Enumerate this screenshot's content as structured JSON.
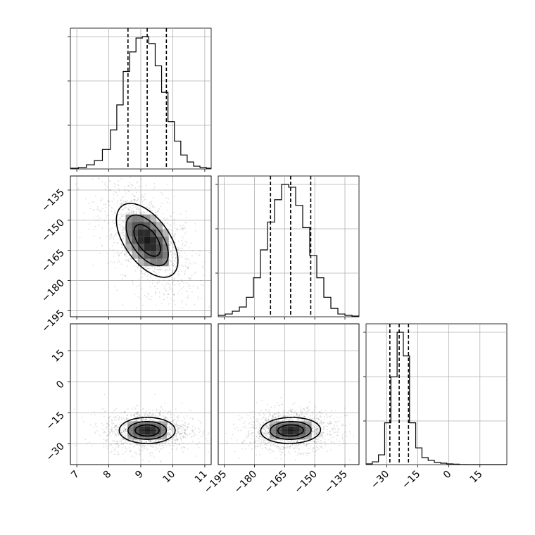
{
  "chart_data": {
    "type": "corner",
    "parameters": [
      {
        "range": [
          6.8,
          11.2
        ],
        "ticks": [
          7,
          8,
          9,
          10,
          11
        ],
        "tick_labels": [
          "7",
          "8",
          "9",
          "10",
          "11"
        ],
        "quantiles": [
          8.6,
          9.2,
          9.8
        ]
      },
      {
        "range": [
          -198,
          -128
        ],
        "ticks": [
          -195,
          -180,
          -165,
          -150,
          -135
        ],
        "tick_labels": [
          "−195",
          "−180",
          "−165",
          "−150",
          "−135"
        ],
        "quantiles": [
          -172,
          -162,
          -152
        ]
      },
      {
        "range": [
          -40,
          28
        ],
        "ticks": [
          -30,
          -15,
          0,
          15
        ],
        "tick_labels": [
          "−30",
          "−15",
          "0",
          "15"
        ],
        "quantiles": [
          -28.5,
          -24,
          -19.5
        ]
      }
    ],
    "histograms": [
      {
        "param": 0,
        "bin_edges": [
          6.8,
          7.05,
          7.3,
          7.55,
          7.8,
          8.05,
          8.25,
          8.45,
          8.65,
          8.85,
          9.05,
          9.25,
          9.45,
          9.65,
          9.85,
          10.05,
          10.25,
          10.45,
          10.65,
          10.85,
          11.05,
          11.2
        ],
        "counts": [
          0.5,
          1,
          3,
          6,
          14,
          28,
          46,
          70,
          84,
          94,
          95,
          90,
          74,
          55,
          34,
          20,
          10,
          5,
          2,
          1,
          0.5
        ]
      },
      {
        "param": 1,
        "bin_edges": [
          -198,
          -194.5,
          -191,
          -187.5,
          -184,
          -180.5,
          -177,
          -173.5,
          -170,
          -166.5,
          -163,
          -159.5,
          -156,
          -152.5,
          -149,
          -145.5,
          -142,
          -138.5,
          -135,
          -131.5,
          -128
        ],
        "counts": [
          1,
          2,
          4,
          7,
          14,
          28,
          48,
          68,
          84,
          95,
          93,
          80,
          64,
          44,
          28,
          14,
          6,
          2,
          1,
          0.5
        ]
      },
      {
        "param": 2,
        "bin_edges": [
          -40,
          -37,
          -34,
          -31,
          -28,
          -25,
          -22,
          -19,
          -16,
          -13,
          -10,
          -7,
          -4,
          -1,
          2,
          5,
          8,
          11,
          14,
          17,
          20,
          23,
          28
        ],
        "counts": [
          0.5,
          2,
          7,
          30,
          63,
          95,
          78,
          30,
          12,
          5,
          3,
          1.5,
          1,
          0.5,
          0.3,
          0.1,
          0,
          0,
          0,
          0,
          0,
          0
        ]
      }
    ],
    "joint": [
      {
        "x_param": 0,
        "y_param": 1,
        "mean": [
          9.2,
          -160
        ],
        "sd": [
          0.55,
          10.5
        ],
        "rho": -0.55
      },
      {
        "x_param": 0,
        "y_param": 2,
        "mean": [
          9.2,
          -23.5
        ],
        "sd": [
          0.5,
          3.6
        ],
        "rho": 0.0
      },
      {
        "x_param": 1,
        "y_param": 2,
        "mean": [
          -162,
          -23.5
        ],
        "sd": [
          8.5,
          3.6
        ],
        "rho": 0.05
      }
    ],
    "title": "",
    "xlabel": "",
    "ylabel": "",
    "grid": true,
    "legend": "none"
  }
}
